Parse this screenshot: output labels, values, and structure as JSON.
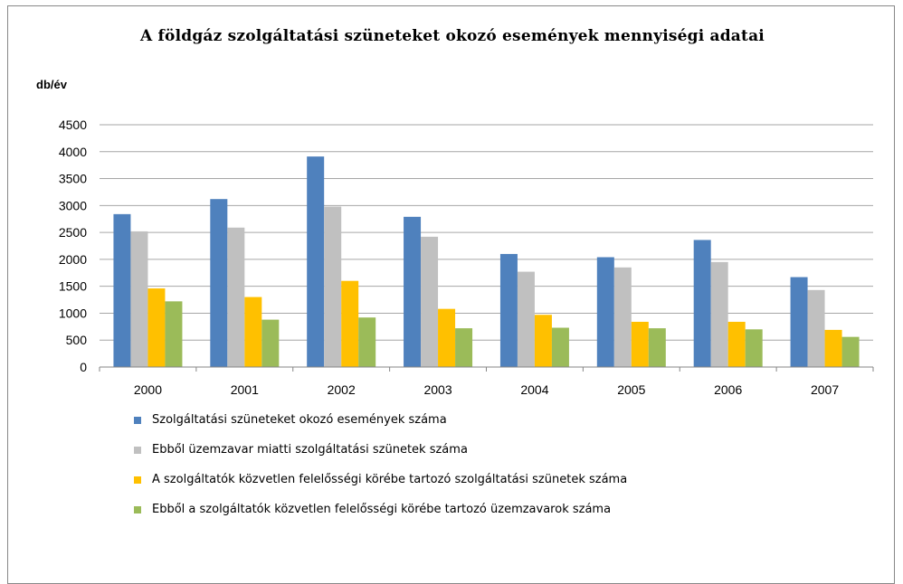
{
  "chart_data": {
    "type": "bar",
    "title": "A földgáz szolgáltatási szüneteket okozó események mennyiségi adatai",
    "ylabel": "db/év",
    "xlabel": "",
    "ylim": [
      0,
      4500
    ],
    "yticks": [
      0,
      500,
      1000,
      1500,
      2000,
      2500,
      3000,
      3500,
      4000,
      4500
    ],
    "grid": true,
    "legend_position": "bottom",
    "categories": [
      "2000",
      "2001",
      "2002",
      "2003",
      "2004",
      "2005",
      "2006",
      "2007"
    ],
    "series": [
      {
        "name": "Szolgáltatási szüneteket okozó események száma",
        "color": "#4f81bd",
        "values": [
          2840,
          3120,
          3910,
          2790,
          2100,
          2040,
          2360,
          1670
        ]
      },
      {
        "name": "Ebből üzemzavar miatti szolgáltatási szünetek száma",
        "color": "#c0c0c0",
        "values": [
          2520,
          2590,
          2980,
          2420,
          1770,
          1850,
          1950,
          1430
        ]
      },
      {
        "name": "A szolgáltatók közvetlen felelősségi körébe tartozó szolgáltatási szünetek száma",
        "color": "#ffc000",
        "values": [
          1460,
          1300,
          1600,
          1080,
          970,
          840,
          840,
          690
        ]
      },
      {
        "name": "Ebből a szolgáltatók közvetlen felelősségi körébe tartozó üzemzavarok száma",
        "color": "#9bbb59",
        "values": [
          1220,
          880,
          920,
          720,
          730,
          720,
          700,
          560
        ]
      }
    ]
  }
}
